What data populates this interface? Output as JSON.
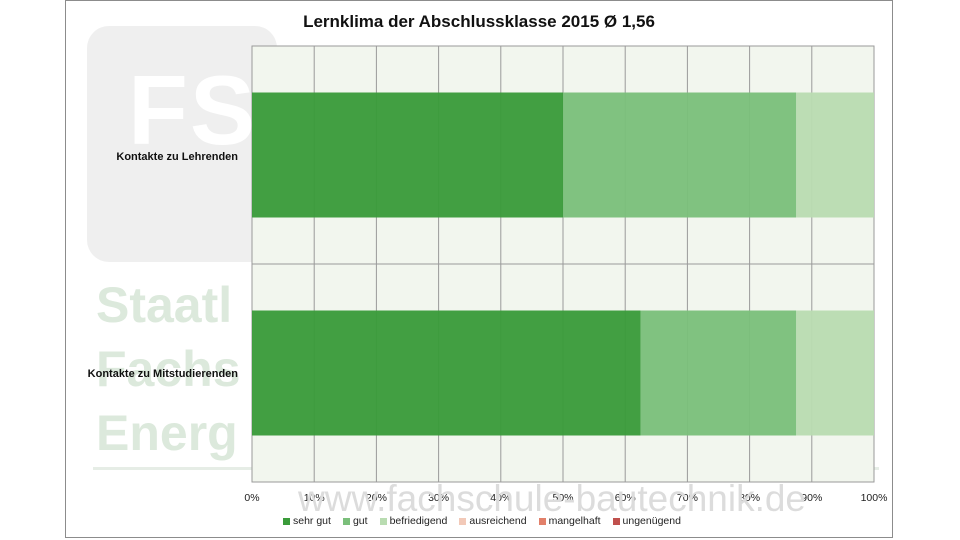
{
  "watermark": {
    "logo_text": "FS",
    "words": [
      "Staatl",
      "Fachs",
      "Energ"
    ],
    "url": "www.fachschule-bautechnik.de"
  },
  "chart_data": {
    "type": "bar",
    "orientation": "horizontal",
    "stacked": true,
    "title": "Lernklima der Abschlussklasse 2015 Ø 1,56",
    "categories": [
      "Kontakte zu Lehrenden",
      "Kontakte zu Mitstudierenden"
    ],
    "xlim": [
      0,
      100
    ],
    "xticks": [
      "0%",
      "10%",
      "20%",
      "30%",
      "40%",
      "50%",
      "60%",
      "70%",
      "80%",
      "90%",
      "100%"
    ],
    "grid": true,
    "legend_position": "bottom",
    "series": [
      {
        "name": "sehr gut",
        "color": "#3a9b3a",
        "values": [
          50,
          62.5
        ]
      },
      {
        "name": "gut",
        "color": "#7bbf7b",
        "values": [
          37.5,
          25
        ]
      },
      {
        "name": "befriedigend",
        "color": "#b9dcb1",
        "values": [
          12.5,
          12.5
        ]
      },
      {
        "name": "ausreichend",
        "color": "#f2c9b8",
        "values": [
          0,
          0
        ]
      },
      {
        "name": "mangelhaft",
        "color": "#e2806a",
        "values": [
          0,
          0
        ]
      },
      {
        "name": "ungenügend",
        "color": "#c0504d",
        "values": [
          0,
          0
        ]
      }
    ]
  }
}
